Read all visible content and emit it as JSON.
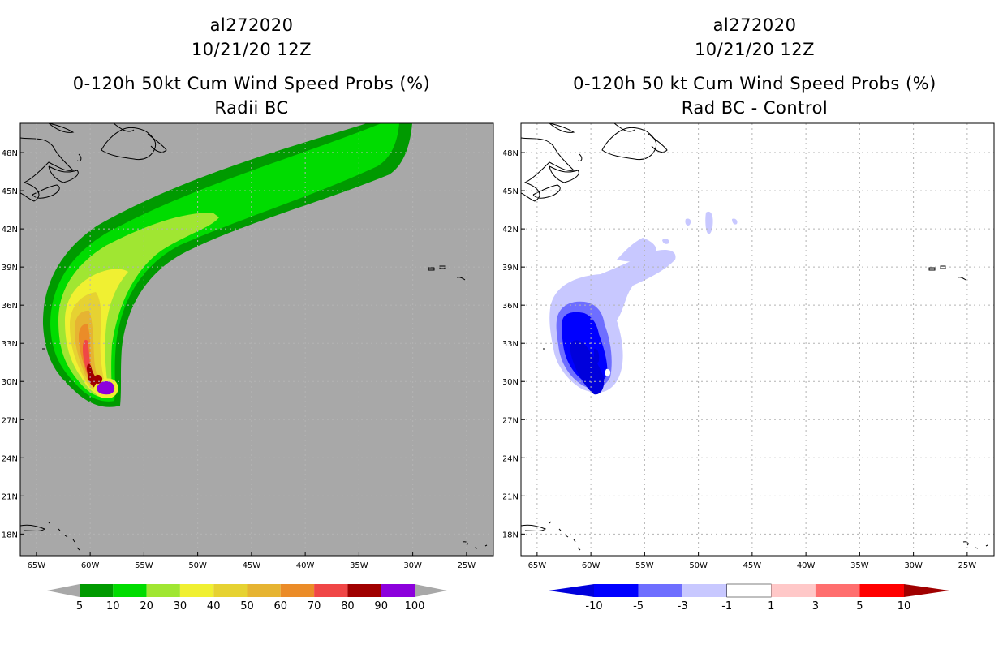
{
  "chart_data": [
    {
      "type": "heatmap",
      "title_lines": [
        "al272020",
        "10/21/20 12Z",
        "0-120h 50kt Cum Wind Speed Probs (%)",
        "Radii BC"
      ],
      "lon_ticks": [
        "65W",
        "60W",
        "55W",
        "50W",
        "45W",
        "40W",
        "35W",
        "30W",
        "25W"
      ],
      "lat_ticks": [
        "48N",
        "45N",
        "42N",
        "39N",
        "36N",
        "33N",
        "30N",
        "27N",
        "24N",
        "21N",
        "18N"
      ],
      "lon_range": [
        -66.5,
        -22.5
      ],
      "lat_range": [
        16.3,
        50.3
      ],
      "colorbar": {
        "labels": [
          "5",
          "10",
          "20",
          "30",
          "40",
          "50",
          "60",
          "70",
          "80",
          "90",
          "100"
        ],
        "colors": [
          "#009a00",
          "#00dc00",
          "#a0e632",
          "#f0f032",
          "#e6d232",
          "#e6b432",
          "#eb8c28",
          "#f04646",
          "#a00000",
          "#8c00dc"
        ]
      },
      "background_color": "#a8a8a8"
    },
    {
      "type": "heatmap",
      "title_lines": [
        "al272020",
        "10/21/20 12Z",
        "0-120h 50 kt Cum Wind Speed Probs (%)",
        "Rad BC - Control"
      ],
      "lon_ticks": [
        "65W",
        "60W",
        "55W",
        "50W",
        "45W",
        "40W",
        "35W",
        "30W",
        "25W"
      ],
      "lat_ticks": [
        "48N",
        "45N",
        "42N",
        "39N",
        "36N",
        "33N",
        "30N",
        "27N",
        "24N",
        "21N",
        "18N"
      ],
      "lon_range": [
        -66.5,
        -22.5
      ],
      "lat_range": [
        16.3,
        50.3
      ],
      "colorbar": {
        "labels": [
          "-10",
          "-5",
          "-3",
          "-1",
          "1",
          "3",
          "5",
          "10"
        ],
        "colors": [
          "#0000dc",
          "#0000ff",
          "#6e6eff",
          "#c8c8ff",
          "#ffffff",
          "#ffc8c8",
          "#ff6e6e",
          "#ff0000",
          "#fa0000"
        ]
      },
      "background_color": "#ffffff"
    }
  ]
}
